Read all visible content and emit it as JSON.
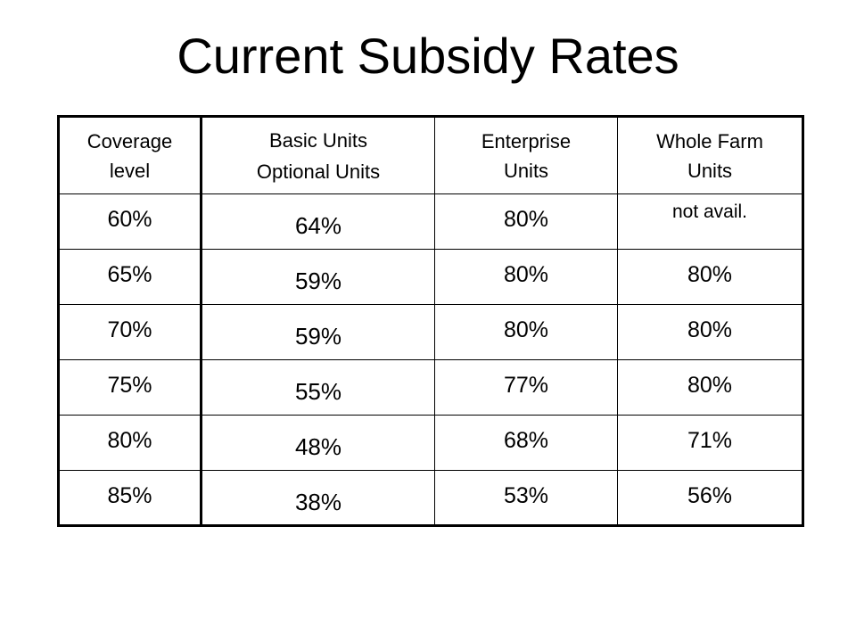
{
  "slide": {
    "title": "Current Subsidy Rates"
  },
  "table": {
    "headers": {
      "coverage": [
        "Coverage",
        "level"
      ],
      "basic": [
        "Basic Units",
        "Optional Units"
      ],
      "enterprise": [
        "Enterprise",
        "Units"
      ],
      "whole_farm": [
        "Whole Farm",
        "Units"
      ]
    },
    "rows": [
      {
        "coverage": "60%",
        "basic": "64%",
        "enterprise": "80%",
        "whole_farm": "not avail."
      },
      {
        "coverage": "65%",
        "basic": "59%",
        "enterprise": "80%",
        "whole_farm": "80%"
      },
      {
        "coverage": "70%",
        "basic": "59%",
        "enterprise": "80%",
        "whole_farm": "80%"
      },
      {
        "coverage": "75%",
        "basic": "55%",
        "enterprise": "77%",
        "whole_farm": "80%"
      },
      {
        "coverage": "80%",
        "basic": "48%",
        "enterprise": "68%",
        "whole_farm": "71%"
      },
      {
        "coverage": "85%",
        "basic": "38%",
        "enterprise": "53%",
        "whole_farm": "56%"
      }
    ]
  }
}
